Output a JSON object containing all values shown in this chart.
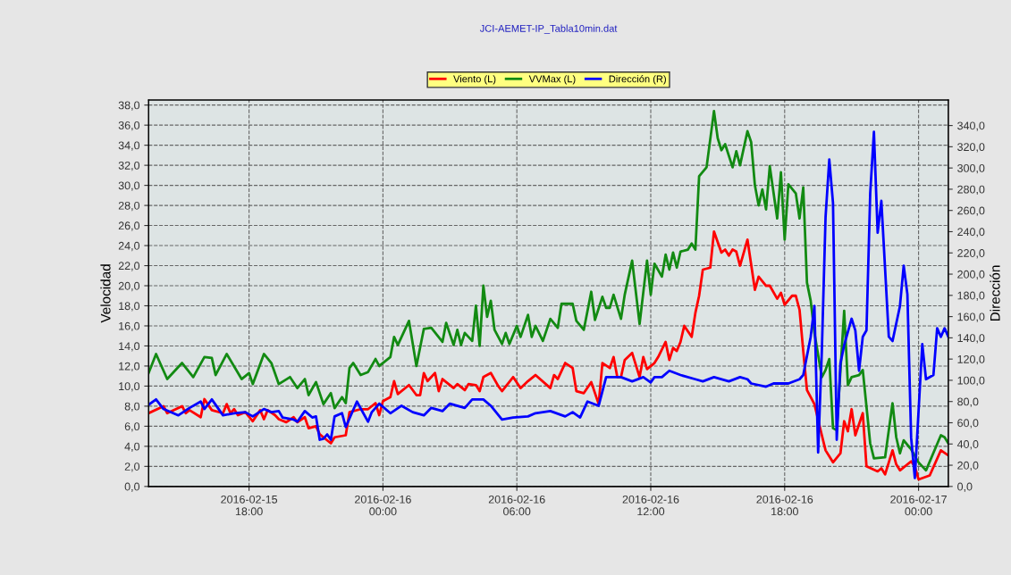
{
  "chart_data": {
    "type": "line",
    "title": "JCI-AEMET-IP_Tabla10min.dat",
    "ylabel": "Velocidad",
    "y2label": "Dirección",
    "xlim": [
      "2016-02-15T13:30",
      "2016-02-17T01:20"
    ],
    "xticks": [
      {
        "value": "2016-02-15T18:00",
        "label": "2016-02-15\n18:00"
      },
      {
        "value": "2016-02-16T00:00",
        "label": "2016-02-16\n00:00"
      },
      {
        "value": "2016-02-16T06:00",
        "label": "2016-02-16\n06:00"
      },
      {
        "value": "2016-02-16T12:00",
        "label": "2016-02-16\n12:00"
      },
      {
        "value": "2016-02-16T18:00",
        "label": "2016-02-16\n18:00"
      },
      {
        "value": "2016-02-17T00:00",
        "label": "2016-02-17\n00:00"
      }
    ],
    "ylim": [
      0,
      38.5
    ],
    "yticks": [
      {
        "value": 0,
        "label": "0,0"
      },
      {
        "value": 2,
        "label": "2,0"
      },
      {
        "value": 4,
        "label": "4,0"
      },
      {
        "value": 6,
        "label": "6,0"
      },
      {
        "value": 8,
        "label": "8,0"
      },
      {
        "value": 10,
        "label": "10,0"
      },
      {
        "value": 12,
        "label": "12,0"
      },
      {
        "value": 14,
        "label": "14,0"
      },
      {
        "value": 16,
        "label": "16,0"
      },
      {
        "value": 18,
        "label": "18,0"
      },
      {
        "value": 20,
        "label": "20,0"
      },
      {
        "value": 22,
        "label": "22,0"
      },
      {
        "value": 24,
        "label": "24,0"
      },
      {
        "value": 26,
        "label": "26,0"
      },
      {
        "value": 28,
        "label": "28,0"
      },
      {
        "value": 30,
        "label": "30,0"
      },
      {
        "value": 32,
        "label": "32,0"
      },
      {
        "value": 34,
        "label": "34,0"
      },
      {
        "value": 36,
        "label": "36,0"
      },
      {
        "value": 38,
        "label": "38,0"
      }
    ],
    "y2lim": [
      0,
      364
    ],
    "y2ticks": [
      {
        "value": 0,
        "label": "0,0"
      },
      {
        "value": 20,
        "label": "20,0"
      },
      {
        "value": 40,
        "label": "40,0"
      },
      {
        "value": 60,
        "label": "60,0"
      },
      {
        "value": 80,
        "label": "80,0"
      },
      {
        "value": 100,
        "label": "100,0"
      },
      {
        "value": 120,
        "label": "120,0"
      },
      {
        "value": 140,
        "label": "140,0"
      },
      {
        "value": 160,
        "label": "160,0"
      },
      {
        "value": 180,
        "label": "180,0"
      },
      {
        "value": 200,
        "label": "200,0"
      },
      {
        "value": 220,
        "label": "220,0"
      },
      {
        "value": 240,
        "label": "240,0"
      },
      {
        "value": 260,
        "label": "260,0"
      },
      {
        "value": 280,
        "label": "280,0"
      },
      {
        "value": 300,
        "label": "300,0"
      },
      {
        "value": 320,
        "label": "320,0"
      },
      {
        "value": 340,
        "label": "340,0"
      }
    ],
    "grid": true,
    "legend": "top",
    "marker": "none",
    "line_style": "solid",
    "series": [
      {
        "name": "Viento (L)",
        "color": "#ff0000",
        "x": [
          "2016-02-15T13:30",
          "2016-02-15T14:10",
          "2016-02-15T14:20",
          "2016-02-15T15:00",
          "2016-02-15T15:10",
          "2016-02-15T15:20",
          "2016-02-15T15:50",
          "2016-02-15T16:00",
          "2016-02-15T16:20",
          "2016-02-15T16:50",
          "2016-02-15T17:00",
          "2016-02-15T17:10",
          "2016-02-15T17:20",
          "2016-02-15T17:30",
          "2016-02-15T17:50",
          "2016-02-15T18:10",
          "2016-02-15T18:30",
          "2016-02-15T18:40",
          "2016-02-15T18:50",
          "2016-02-15T19:10",
          "2016-02-15T19:20",
          "2016-02-15T19:40",
          "2016-02-15T20:00",
          "2016-02-15T20:10",
          "2016-02-15T20:30",
          "2016-02-15T20:40",
          "2016-02-15T21:00",
          "2016-02-15T21:10",
          "2016-02-15T21:20",
          "2016-02-15T21:40",
          "2016-02-15T21:50",
          "2016-02-15T22:20",
          "2016-02-15T22:30",
          "2016-02-15T23:00",
          "2016-02-15T23:20",
          "2016-02-15T23:40",
          "2016-02-15T23:50",
          "2016-02-16T00:00",
          "2016-02-16T00:20",
          "2016-02-16T00:30",
          "2016-02-16T00:40",
          "2016-02-16T01:10",
          "2016-02-16T01:30",
          "2016-02-16T01:40",
          "2016-02-16T01:50",
          "2016-02-16T02:00",
          "2016-02-16T02:20",
          "2016-02-16T02:30",
          "2016-02-16T02:40",
          "2016-02-16T03:10",
          "2016-02-16T03:20",
          "2016-02-16T03:40",
          "2016-02-16T03:50",
          "2016-02-16T04:10",
          "2016-02-16T04:20",
          "2016-02-16T04:30",
          "2016-02-16T04:50",
          "2016-02-16T05:10",
          "2016-02-16T05:20",
          "2016-02-16T05:50",
          "2016-02-16T06:10",
          "2016-02-16T06:30",
          "2016-02-16T06:50",
          "2016-02-16T07:30",
          "2016-02-16T07:40",
          "2016-02-16T07:50",
          "2016-02-16T08:10",
          "2016-02-16T08:30",
          "2016-02-16T08:40",
          "2016-02-16T09:00",
          "2016-02-16T09:20",
          "2016-02-16T09:40",
          "2016-02-16T09:50",
          "2016-02-16T10:10",
          "2016-02-16T10:20",
          "2016-02-16T10:30",
          "2016-02-16T10:40",
          "2016-02-16T10:50",
          "2016-02-16T11:10",
          "2016-02-16T11:30",
          "2016-02-16T11:40",
          "2016-02-16T11:50",
          "2016-02-16T12:10",
          "2016-02-16T12:20",
          "2016-02-16T12:40",
          "2016-02-16T12:50",
          "2016-02-16T13:00",
          "2016-02-16T13:10",
          "2016-02-16T13:20",
          "2016-02-16T13:30",
          "2016-02-16T13:50",
          "2016-02-16T14:00",
          "2016-02-16T14:10",
          "2016-02-16T14:20",
          "2016-02-16T14:40",
          "2016-02-16T14:50",
          "2016-02-16T15:10",
          "2016-02-16T15:20",
          "2016-02-16T15:30",
          "2016-02-16T15:40",
          "2016-02-16T15:50",
          "2016-02-16T16:00",
          "2016-02-16T16:20",
          "2016-02-16T16:40",
          "2016-02-16T16:50",
          "2016-02-16T17:10",
          "2016-02-16T17:20",
          "2016-02-16T17:40",
          "2016-02-16T17:50",
          "2016-02-16T18:00",
          "2016-02-16T18:20",
          "2016-02-16T18:30",
          "2016-02-16T18:40",
          "2016-02-16T18:50",
          "2016-02-16T19:00",
          "2016-02-16T19:20",
          "2016-02-16T19:40",
          "2016-02-16T19:50",
          "2016-02-16T20:10",
          "2016-02-16T20:30",
          "2016-02-16T20:40",
          "2016-02-16T20:50",
          "2016-02-16T21:00",
          "2016-02-16T21:10",
          "2016-02-16T21:30",
          "2016-02-16T21:40",
          "2016-02-16T22:10",
          "2016-02-16T22:20",
          "2016-02-16T22:30",
          "2016-02-16T22:50",
          "2016-02-16T23:00",
          "2016-02-16T23:10",
          "2016-02-16T23:40",
          "2016-02-16T23:50",
          "2016-02-17T00:00",
          "2016-02-17T00:30",
          "2016-02-17T01:00",
          "2016-02-17T01:20"
        ],
        "values": [
          7.3,
          8.0,
          7.3,
          8.0,
          7.3,
          7.6,
          6.9,
          8.7,
          7.6,
          7.3,
          8.2,
          7.3,
          7.7,
          7.1,
          7.4,
          6.5,
          7.6,
          6.7,
          7.6,
          7.1,
          6.7,
          6.4,
          6.9,
          6.4,
          6.9,
          5.8,
          6.0,
          5.2,
          4.9,
          4.3,
          4.9,
          5.1,
          7.4,
          7.7,
          7.7,
          8.3,
          7.1,
          8.5,
          8.9,
          10.5,
          9.2,
          10.1,
          9.1,
          9.1,
          11.3,
          10.5,
          11.3,
          9.5,
          10.7,
          9.8,
          10.2,
          9.6,
          10.2,
          10.1,
          9.5,
          10.9,
          11.3,
          10.0,
          9.5,
          10.9,
          9.8,
          10.5,
          11.1,
          9.8,
          11.1,
          10.7,
          12.3,
          11.8,
          9.5,
          9.3,
          10.4,
          8.2,
          12.3,
          11.8,
          12.9,
          10.9,
          10.9,
          12.6,
          13.3,
          10.9,
          12.9,
          11.7,
          12.3,
          12.9,
          14.4,
          12.6,
          13.8,
          13.5,
          14.4,
          16.0,
          14.9,
          17.3,
          19.0,
          21.6,
          21.8,
          25.4,
          23.3,
          23.6,
          23.0,
          23.6,
          23.4,
          22.0,
          24.6,
          19.6,
          20.9,
          20.0,
          20.0,
          18.7,
          19.3,
          18.1,
          19.0,
          19.0,
          17.6,
          13.5,
          9.6,
          8.2,
          5.1,
          3.6,
          2.4,
          3.3,
          6.5,
          5.5,
          7.7,
          5.1,
          7.3,
          2.0,
          1.5,
          1.8,
          1.2,
          3.6,
          2.2,
          1.6,
          2.5,
          2.0,
          0.7,
          1.1,
          3.6,
          3.1
        ]
      },
      {
        "name": "VVMax (L)",
        "color": "#128a12",
        "x": [
          "2016-02-15T13:30",
          "2016-02-15T13:50",
          "2016-02-15T14:20",
          "2016-02-15T15:00",
          "2016-02-15T15:30",
          "2016-02-15T16:00",
          "2016-02-15T16:20",
          "2016-02-15T16:30",
          "2016-02-15T17:00",
          "2016-02-15T17:40",
          "2016-02-15T18:00",
          "2016-02-15T18:10",
          "2016-02-15T18:40",
          "2016-02-15T19:00",
          "2016-02-15T19:20",
          "2016-02-15T19:50",
          "2016-02-15T20:10",
          "2016-02-15T20:30",
          "2016-02-15T20:40",
          "2016-02-15T21:00",
          "2016-02-15T21:20",
          "2016-02-15T21:40",
          "2016-02-15T21:50",
          "2016-02-15T22:10",
          "2016-02-15T22:20",
          "2016-02-15T22:30",
          "2016-02-15T22:40",
          "2016-02-15T23:00",
          "2016-02-15T23:20",
          "2016-02-15T23:40",
          "2016-02-15T23:50",
          "2016-02-16T00:20",
          "2016-02-16T00:30",
          "2016-02-16T00:40",
          "2016-02-16T01:10",
          "2016-02-16T01:30",
          "2016-02-16T01:50",
          "2016-02-16T02:10",
          "2016-02-16T02:40",
          "2016-02-16T02:50",
          "2016-02-16T03:10",
          "2016-02-16T03:20",
          "2016-02-16T03:30",
          "2016-02-16T03:40",
          "2016-02-16T04:00",
          "2016-02-16T04:10",
          "2016-02-16T04:20",
          "2016-02-16T04:30",
          "2016-02-16T04:40",
          "2016-02-16T04:50",
          "2016-02-16T05:00",
          "2016-02-16T05:20",
          "2016-02-16T05:30",
          "2016-02-16T05:40",
          "2016-02-16T06:00",
          "2016-02-16T06:10",
          "2016-02-16T06:30",
          "2016-02-16T06:40",
          "2016-02-16T06:50",
          "2016-02-16T07:10",
          "2016-02-16T07:30",
          "2016-02-16T07:50",
          "2016-02-16T08:00",
          "2016-02-16T08:30",
          "2016-02-16T08:40",
          "2016-02-16T09:00",
          "2016-02-16T09:20",
          "2016-02-16T09:30",
          "2016-02-16T09:50",
          "2016-02-16T10:00",
          "2016-02-16T10:10",
          "2016-02-16T10:20",
          "2016-02-16T10:40",
          "2016-02-16T10:50",
          "2016-02-16T11:10",
          "2016-02-16T11:30",
          "2016-02-16T11:50",
          "2016-02-16T12:00",
          "2016-02-16T12:10",
          "2016-02-16T12:30",
          "2016-02-16T12:40",
          "2016-02-16T12:50",
          "2016-02-16T13:00",
          "2016-02-16T13:10",
          "2016-02-16T13:20",
          "2016-02-16T13:40",
          "2016-02-16T13:50",
          "2016-02-16T14:00",
          "2016-02-16T14:10",
          "2016-02-16T14:30",
          "2016-02-16T14:50",
          "2016-02-16T15:00",
          "2016-02-16T15:10",
          "2016-02-16T15:20",
          "2016-02-16T15:40",
          "2016-02-16T15:50",
          "2016-02-16T16:00",
          "2016-02-16T16:20",
          "2016-02-16T16:30",
          "2016-02-16T16:40",
          "2016-02-16T16:50",
          "2016-02-16T17:00",
          "2016-02-16T17:10",
          "2016-02-16T17:20",
          "2016-02-16T17:40",
          "2016-02-16T17:50",
          "2016-02-16T18:00",
          "2016-02-16T18:10",
          "2016-02-16T18:30",
          "2016-02-16T18:40",
          "2016-02-16T18:50",
          "2016-02-16T19:00",
          "2016-02-16T19:10",
          "2016-02-16T19:20",
          "2016-02-16T19:40",
          "2016-02-16T19:50",
          "2016-02-16T20:00",
          "2016-02-16T20:10",
          "2016-02-16T20:20",
          "2016-02-16T20:40",
          "2016-02-16T20:50",
          "2016-02-16T21:00",
          "2016-02-16T21:20",
          "2016-02-16T21:30",
          "2016-02-16T21:50",
          "2016-02-16T22:00",
          "2016-02-16T22:30",
          "2016-02-16T22:50",
          "2016-02-16T23:00",
          "2016-02-16T23:10",
          "2016-02-16T23:20",
          "2016-02-16T23:40",
          "2016-02-17T00:00",
          "2016-02-17T00:10",
          "2016-02-17T00:20",
          "2016-02-17T01:00",
          "2016-02-17T01:10",
          "2016-02-17T01:20"
        ],
        "values": [
          11.3,
          13.2,
          10.7,
          12.3,
          10.9,
          12.9,
          12.8,
          11.1,
          13.2,
          10.7,
          11.3,
          10.2,
          13.2,
          12.3,
          10.2,
          10.9,
          9.8,
          10.7,
          9.1,
          10.4,
          8.2,
          9.3,
          7.8,
          8.9,
          8.3,
          11.8,
          12.3,
          11.1,
          11.4,
          12.7,
          12.0,
          12.9,
          14.9,
          14.1,
          16.5,
          12.0,
          15.7,
          15.8,
          14.4,
          16.3,
          14.1,
          15.6,
          14.1,
          15.3,
          14.5,
          18.0,
          14.0,
          20.0,
          16.9,
          18.5,
          15.6,
          14.2,
          15.3,
          14.2,
          16.0,
          14.9,
          17.1,
          14.9,
          16.0,
          14.5,
          16.7,
          15.8,
          18.2,
          18.2,
          16.5,
          15.6,
          19.4,
          16.6,
          18.9,
          17.8,
          17.8,
          19.1,
          16.7,
          19.1,
          22.5,
          16.2,
          22.5,
          19.1,
          22.2,
          20.9,
          23.1,
          21.6,
          23.3,
          21.8,
          23.4,
          23.6,
          24.2,
          23.6,
          30.9,
          31.8,
          37.4,
          34.7,
          33.5,
          34.1,
          31.8,
          33.4,
          32.0,
          35.4,
          34.3,
          30.0,
          28.0,
          29.6,
          27.6,
          31.9,
          26.7,
          31.3,
          24.6,
          30.1,
          29.2,
          26.7,
          29.8,
          20.3,
          18.5,
          15.3,
          10.9,
          11.6,
          12.7,
          5.8,
          5.6,
          17.5,
          10.1,
          10.9,
          11.1,
          11.6,
          4.3,
          2.8,
          2.9,
          8.3,
          4.9,
          3.3,
          4.6,
          3.7,
          2.4,
          2.0,
          1.6,
          5.1,
          4.9,
          4.3
        ]
      },
      {
        "name": "Dirección (R)",
        "color": "#0000ff",
        "axis": "y2",
        "x": [
          "2016-02-15T13:30",
          "2016-02-15T13:50",
          "2016-02-15T14:10",
          "2016-02-15T14:50",
          "2016-02-15T15:20",
          "2016-02-15T15:50",
          "2016-02-15T16:00",
          "2016-02-15T16:20",
          "2016-02-15T16:50",
          "2016-02-15T17:20",
          "2016-02-15T17:50",
          "2016-02-15T18:10",
          "2016-02-15T18:40",
          "2016-02-15T19:00",
          "2016-02-15T19:20",
          "2016-02-15T19:30",
          "2016-02-15T20:00",
          "2016-02-15T20:10",
          "2016-02-15T20:30",
          "2016-02-15T20:50",
          "2016-02-15T21:00",
          "2016-02-15T21:10",
          "2016-02-15T21:20",
          "2016-02-15T21:30",
          "2016-02-15T21:40",
          "2016-02-15T21:50",
          "2016-02-15T22:10",
          "2016-02-15T22:20",
          "2016-02-15T22:50",
          "2016-02-15T23:20",
          "2016-02-15T23:30",
          "2016-02-15T23:50",
          "2016-02-16T00:20",
          "2016-02-16T00:50",
          "2016-02-16T01:20",
          "2016-02-16T01:50",
          "2016-02-16T02:10",
          "2016-02-16T02:40",
          "2016-02-16T03:00",
          "2016-02-16T03:40",
          "2016-02-16T04:00",
          "2016-02-16T04:30",
          "2016-02-16T04:50",
          "2016-02-16T05:20",
          "2016-02-16T05:50",
          "2016-02-16T06:30",
          "2016-02-16T06:50",
          "2016-02-16T07:30",
          "2016-02-16T08:10",
          "2016-02-16T08:30",
          "2016-02-16T08:50",
          "2016-02-16T09:10",
          "2016-02-16T09:40",
          "2016-02-16T10:00",
          "2016-02-16T10:20",
          "2016-02-16T10:40",
          "2016-02-16T11:10",
          "2016-02-16T11:40",
          "2016-02-16T12:00",
          "2016-02-16T12:10",
          "2016-02-16T12:30",
          "2016-02-16T12:50",
          "2016-02-16T13:20",
          "2016-02-16T14:00",
          "2016-02-16T14:20",
          "2016-02-16T14:50",
          "2016-02-16T15:30",
          "2016-02-16T16:00",
          "2016-02-16T16:20",
          "2016-02-16T16:30",
          "2016-02-16T17:10",
          "2016-02-16T17:30",
          "2016-02-16T18:10",
          "2016-02-16T18:40",
          "2016-02-16T18:50",
          "2016-02-16T19:10",
          "2016-02-16T19:20",
          "2016-02-16T19:30",
          "2016-02-16T19:40",
          "2016-02-16T19:50",
          "2016-02-16T20:00",
          "2016-02-16T20:10",
          "2016-02-16T20:20",
          "2016-02-16T20:30",
          "2016-02-16T20:40",
          "2016-02-16T21:00",
          "2016-02-16T21:10",
          "2016-02-16T21:20",
          "2016-02-16T21:30",
          "2016-02-16T21:40",
          "2016-02-16T21:50",
          "2016-02-16T22:00",
          "2016-02-16T22:10",
          "2016-02-16T22:20",
          "2016-02-16T22:40",
          "2016-02-16T22:50",
          "2016-02-16T23:10",
          "2016-02-16T23:20",
          "2016-02-16T23:30",
          "2016-02-16T23:40",
          "2016-02-16T23:50",
          "2016-02-17T00:10",
          "2016-02-17T00:20",
          "2016-02-17T00:40",
          "2016-02-17T00:50",
          "2016-02-17T01:00",
          "2016-02-17T01:10",
          "2016-02-17T01:20"
        ],
        "values": [
          77,
          82,
          73,
          67,
          74,
          80,
          73,
          82,
          67,
          69,
          70,
          66,
          73,
          70,
          71,
          65,
          63,
          61,
          71,
          65,
          66,
          44,
          45,
          49,
          44,
          66,
          69,
          56,
          80,
          61,
          70,
          78,
          69,
          76,
          70,
          67,
          74,
          71,
          78,
          74,
          82,
          82,
          76,
          63,
          65,
          66,
          69,
          71,
          66,
          70,
          65,
          80,
          76,
          103,
          103,
          103,
          99,
          103,
          98,
          103,
          103,
          109,
          105,
          101,
          99,
          103,
          99,
          103,
          101,
          97,
          94,
          97,
          97,
          101,
          105,
          141,
          170,
          32,
          128,
          254,
          308,
          267,
          44,
          116,
          133,
          158,
          147,
          109,
          141,
          147,
          276,
          334,
          239,
          269,
          141,
          137,
          170,
          208,
          181,
          46,
          8,
          134,
          101,
          105,
          149,
          141,
          149,
          141
        ]
      }
    ]
  }
}
